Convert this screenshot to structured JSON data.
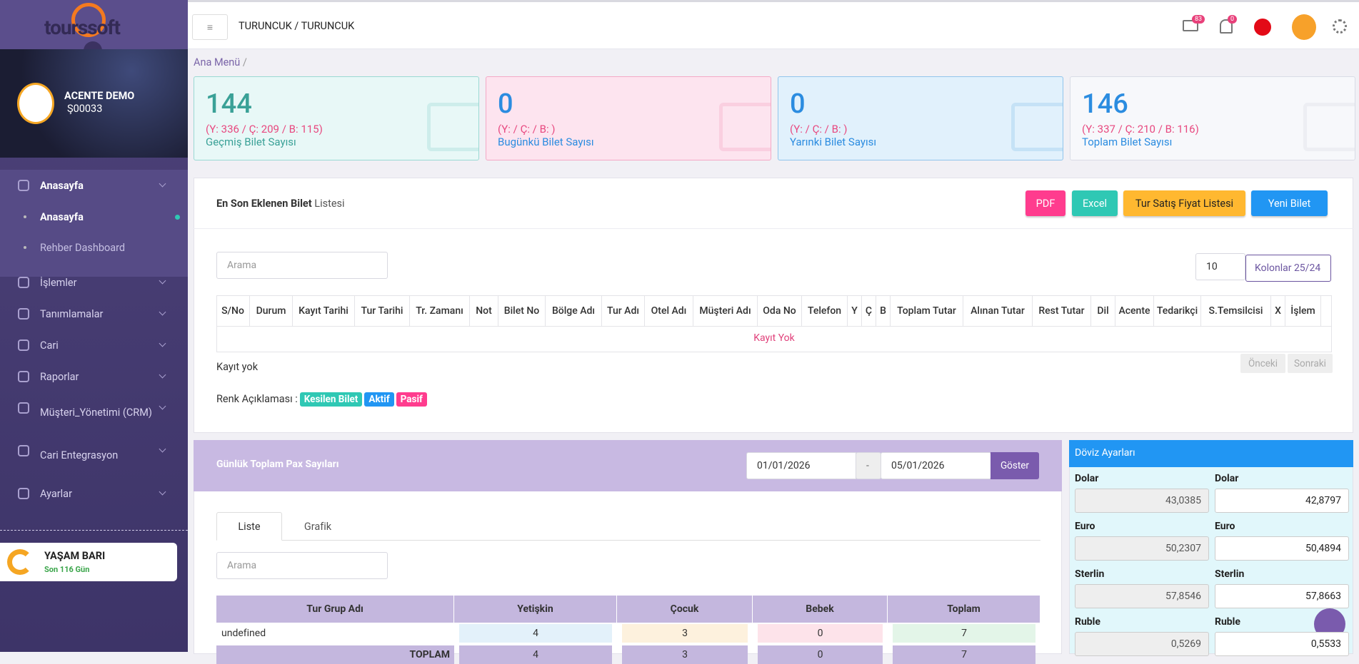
{
  "header": {
    "logo": "tourssoft",
    "title": "TURUNCUK / TURUNCUK",
    "mail_badge": "83",
    "bell_badge": "0"
  },
  "sidebar": {
    "user_name": "ACENTE DEMO",
    "user_code": "Ş00033",
    "menu": [
      {
        "label": "Anasayfa",
        "children": [
          "Anasayfa",
          "Rehber Dashboard"
        ]
      },
      {
        "label": "İşlemler"
      },
      {
        "label": "Tanımlamalar"
      },
      {
        "label": "Cari"
      },
      {
        "label": "Raporlar"
      },
      {
        "label": "Müşteri_Yönetimi (CRM)"
      },
      {
        "label": "Cari Entegrasyon"
      },
      {
        "label": "Ayarlar"
      }
    ],
    "life_bar": {
      "title": "YAŞAM BARI",
      "subtitle": "Son 116 Gün"
    }
  },
  "breadcrumb": "Ana Menü",
  "stat_cards": [
    {
      "value": "144",
      "detail": "(Y: 336 / Ç: 209 / B: 115)",
      "label": "Geçmiş Bilet Sayısı"
    },
    {
      "value": "0",
      "detail": "(Y: / Ç: / B: )",
      "label": "Bugünkü Bilet Sayısı"
    },
    {
      "value": "0",
      "detail": "(Y: / Ç: / B: )",
      "label": "Yarınki Bilet Sayısı"
    },
    {
      "value": "146",
      "detail": "(Y: 337 / Ç: 210 / B: 116)",
      "label": "Toplam Bilet Sayısı"
    }
  ],
  "ticket_list": {
    "title_bold": "En Son Eklenen Bilet",
    "title_rest": "Listesi",
    "buttons": [
      "PDF",
      "Excel",
      "Tur Satış Fiyat Listesi",
      "Yeni Bilet"
    ],
    "search": "Arama",
    "page_size": "10",
    "columns_button": "Kolonlar 25/24",
    "columns": [
      "S/No",
      "Durum",
      "Kayıt Tarihi",
      "Tur Tarihi",
      "Tr. Zamanı",
      "Not",
      "Bilet No",
      "Bölge Adı",
      "Tur Adı",
      "Otel Adı",
      "Müşteri Adı",
      "Oda No",
      "Telefon",
      "Y",
      "Ç",
      "B",
      "Toplam Tutar",
      "Alınan Tutar",
      "Rest Tutar",
      "Dil",
      "Acente",
      "Tedarikçi",
      "S.Temsilcisi",
      "X",
      "İşlem"
    ],
    "empty": "Kayıt Yok",
    "info": "Kayıt yok",
    "prev": "Önceki",
    "next": "Sonraki",
    "legend_label": "Renk Açıklaması :",
    "legend": [
      "Kesilen Bilet",
      "Aktif",
      "Pasif"
    ]
  },
  "pax": {
    "title": "Günlük Toplam Pax Sayıları",
    "date_from": "01/01/2026",
    "separator": "-",
    "date_to": "05/01/2026",
    "button": "Göster",
    "tabs": [
      "Liste",
      "Grafik"
    ],
    "search": "Arama",
    "headers": [
      "Tur Grup Adı",
      "Yetişkin",
      "Çocuk",
      "Bebek",
      "Toplam"
    ],
    "rows": [
      [
        "undefined",
        "4",
        "3",
        "0",
        "7"
      ],
      [
        "TOPLAM",
        "4",
        "3",
        "0",
        "7"
      ]
    ]
  },
  "currency": {
    "title": "Döviz Ayarları",
    "rows": [
      [
        "Dolar",
        "43,0385",
        "Dolar",
        "42,8797"
      ],
      [
        "Euro",
        "50,2307",
        "Euro",
        "50,4894"
      ],
      [
        "Sterlin",
        "57,8546",
        "Sterlin",
        "57,8663"
      ],
      [
        "Ruble",
        "0,5269",
        "Ruble",
        "0,5533"
      ]
    ]
  }
}
